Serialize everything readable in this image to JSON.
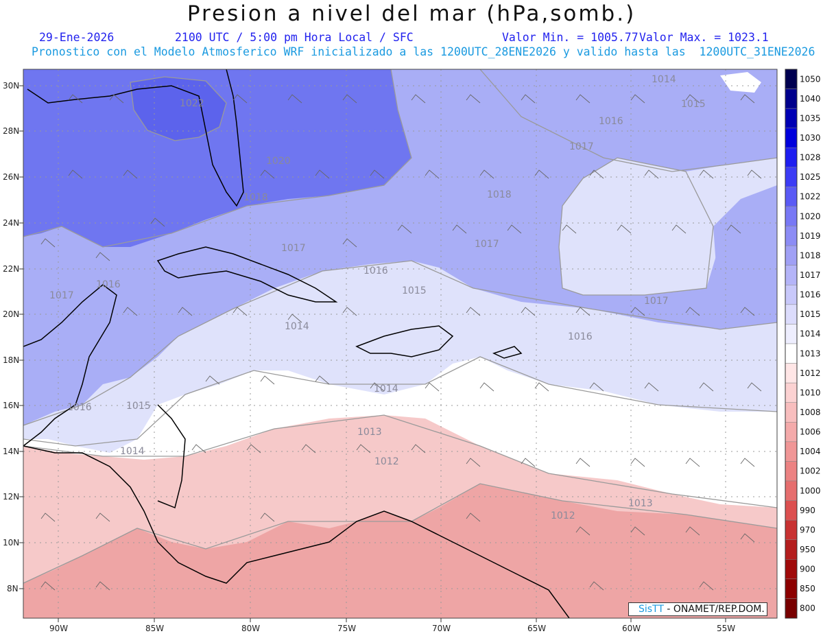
{
  "header": {
    "title": "Presion a nivel del mar (hPa,somb.)",
    "date": "29-Ene-2026",
    "time_info": "2100 UTC / 5:00 pm Hora Local / SFC",
    "min_value": "Valor Min. = 1005.77",
    "max_value": "Valor Max. = 1023.1",
    "run_info": "Pronostico con el Modelo Atmosferico WRF inicializado a las 1200UTC_28ENE2026 y valido hasta las  1200UTC_31ENE2026"
  },
  "map": {
    "lat_ticks": [
      "30N",
      "28N",
      "26N",
      "24N",
      "22N",
      "20N",
      "18N",
      "16N",
      "14N",
      "12N",
      "10N",
      "8N"
    ],
    "lon_ticks": [
      "90W",
      "85W",
      "80W",
      "75W",
      "70W",
      "65W",
      "60W",
      "55W"
    ],
    "contour_labels": [
      "1014",
      "1015",
      "1016",
      "1017",
      "1018",
      "1022",
      "1020",
      "1018",
      "1017",
      "1017",
      "1016",
      "1016",
      "1015",
      "1014",
      "1014",
      "1016",
      "1013",
      "1012",
      "1012",
      "1013",
      "1015",
      "1014",
      "1017",
      "1017",
      "1016"
    ],
    "colors": {
      "high": "#6f76f0",
      "mid": "#a9aef6",
      "low_blue": "#dfe2fb",
      "neutral": "#ffffff",
      "low_red": "#f6c9c9",
      "red": "#eea5a5",
      "contour": "#9a9a9a",
      "coast": "#000000"
    }
  },
  "legend": {
    "levels": [
      "1050",
      "1040",
      "1035",
      "1030",
      "1028",
      "1025",
      "1022",
      "1020",
      "1019",
      "1018",
      "1017",
      "1016",
      "1015",
      "1014",
      "1013",
      "1012",
      "1010",
      "1008",
      "1006",
      "1004",
      "1002",
      "1000",
      "990",
      "970",
      "950",
      "900",
      "850",
      "800"
    ],
    "colors": [
      "#000050",
      "#00008c",
      "#0000b4",
      "#0000dc",
      "#1e1ef0",
      "#3c3cf5",
      "#5a5af5",
      "#7878f5",
      "#8c8cf5",
      "#a0a0f5",
      "#b4b4f8",
      "#c8c8fa",
      "#dcdcfc",
      "#eeeefe",
      "#ffffff",
      "#ffe6e6",
      "#fcd2d2",
      "#f8bebe",
      "#f4aaaa",
      "#f09696",
      "#ec8282",
      "#e66e6e",
      "#dc5050",
      "#c83232",
      "#b41e1e",
      "#a00a0a",
      "#8c0000",
      "#780000"
    ]
  },
  "credit": {
    "brand": "SisTT",
    "text": " - ONAMET/REP.DOM."
  }
}
